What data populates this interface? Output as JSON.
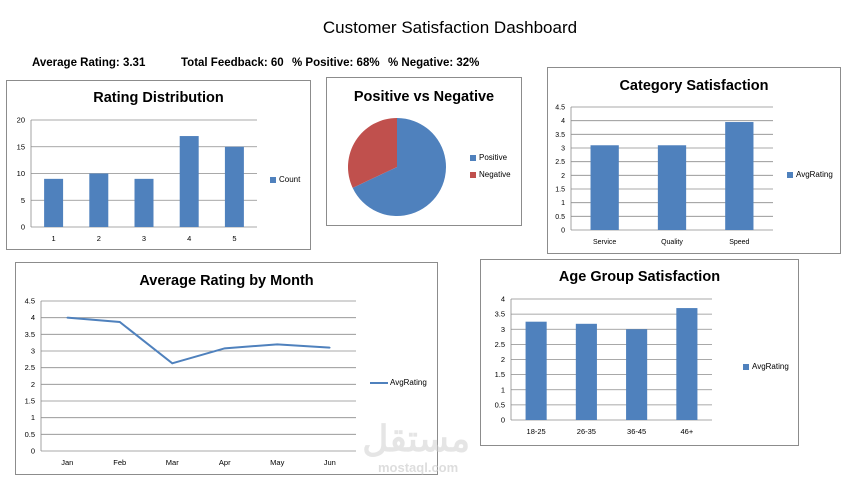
{
  "dashboard": {
    "title": "Customer Satisfaction Dashboard",
    "kpis": {
      "avg_rating": "Average Rating: 3.31",
      "total_feedback": "Total Feedback: 60",
      "pct_positive": "% Positive: 68%",
      "pct_negative": "% Negative: 32%"
    },
    "watermark": "مستقل",
    "watermark_sub": "mostaql.com"
  },
  "colors": {
    "bar": "#4f81bd",
    "positive": "#4f81bd",
    "negative": "#c0504d",
    "grid": "#8c8c8c"
  },
  "chart_data": [
    {
      "id": "rating",
      "type": "bar",
      "title": "Rating Distribution",
      "categories": [
        "1",
        "2",
        "3",
        "4",
        "5"
      ],
      "series": [
        {
          "name": "Count",
          "values": [
            9,
            10,
            9,
            17,
            15
          ]
        }
      ],
      "ylim": [
        0,
        20
      ],
      "yticks": [
        "0",
        "5",
        "10",
        "15",
        "20"
      ],
      "grid": true,
      "legend": "right"
    },
    {
      "id": "pie",
      "type": "pie",
      "title": "Positive vs Negative",
      "labels": [
        "Positive",
        "Negative"
      ],
      "values": [
        68,
        32
      ],
      "legend": "right"
    },
    {
      "id": "category",
      "type": "bar",
      "title": "Category Satisfaction",
      "categories": [
        "Service",
        "Quality",
        "Speed"
      ],
      "series": [
        {
          "name": "AvgRating",
          "values": [
            3.1,
            3.1,
            3.95
          ]
        }
      ],
      "ylim": [
        0,
        4.5
      ],
      "yticks": [
        "0",
        "0.5",
        "1",
        "1.5",
        "2",
        "2.5",
        "3",
        "3.5",
        "4",
        "4.5"
      ],
      "grid": true,
      "legend": "right"
    },
    {
      "id": "month",
      "type": "line",
      "title": "Average Rating by Month",
      "categories": [
        "Jan",
        "Feb",
        "Mar",
        "Apr",
        "May",
        "Jun"
      ],
      "series": [
        {
          "name": "AvgRating",
          "values": [
            4.0,
            3.87,
            2.63,
            3.08,
            3.2,
            3.1
          ]
        }
      ],
      "ylim": [
        0,
        4.5
      ],
      "yticks": [
        "0",
        "0.5",
        "1",
        "1.5",
        "2",
        "2.5",
        "3",
        "3.5",
        "4",
        "4.5"
      ],
      "grid": true,
      "legend": "right"
    },
    {
      "id": "age",
      "type": "bar",
      "title": "Age Group Satisfaction",
      "categories": [
        "18-25",
        "26-35",
        "36-45",
        "46+"
      ],
      "series": [
        {
          "name": "AvgRating",
          "values": [
            3.25,
            3.18,
            3.0,
            3.7
          ]
        }
      ],
      "ylim": [
        0,
        4
      ],
      "yticks": [
        "0",
        "0.5",
        "1",
        "1.5",
        "2",
        "2.5",
        "3",
        "3.5",
        "4"
      ],
      "grid": true,
      "legend": "right"
    }
  ]
}
